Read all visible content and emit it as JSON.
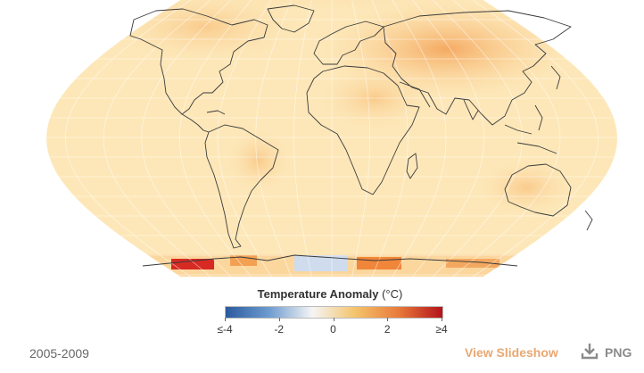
{
  "legend": {
    "title": "Temperature Anomaly",
    "unit": "(°C)",
    "ticks": [
      {
        "value": -4,
        "label": "≤-4"
      },
      {
        "value": -2,
        "label": "-2"
      },
      {
        "value": 0,
        "label": "0"
      },
      {
        "value": 2,
        "label": "2"
      },
      {
        "value": 4,
        "label": "≥4"
      }
    ],
    "range": [
      -4,
      4
    ],
    "colors": [
      "#2b5a9e",
      "#6d9bcf",
      "#f5f5f5",
      "#f4c36b",
      "#e8793a",
      "#b3131a"
    ]
  },
  "footer": {
    "period": "2005-2009",
    "slideshow_label": "View Slideshow",
    "png_label": "PNG",
    "download_icon": "download-icon",
    "link_color": "#e8a873"
  },
  "map": {
    "projection": "robinson",
    "base_color": "#fde7b8",
    "warm_color": "#f5a55a",
    "hot_color": "#e0302a",
    "cold_color": "#c9d9ee"
  }
}
